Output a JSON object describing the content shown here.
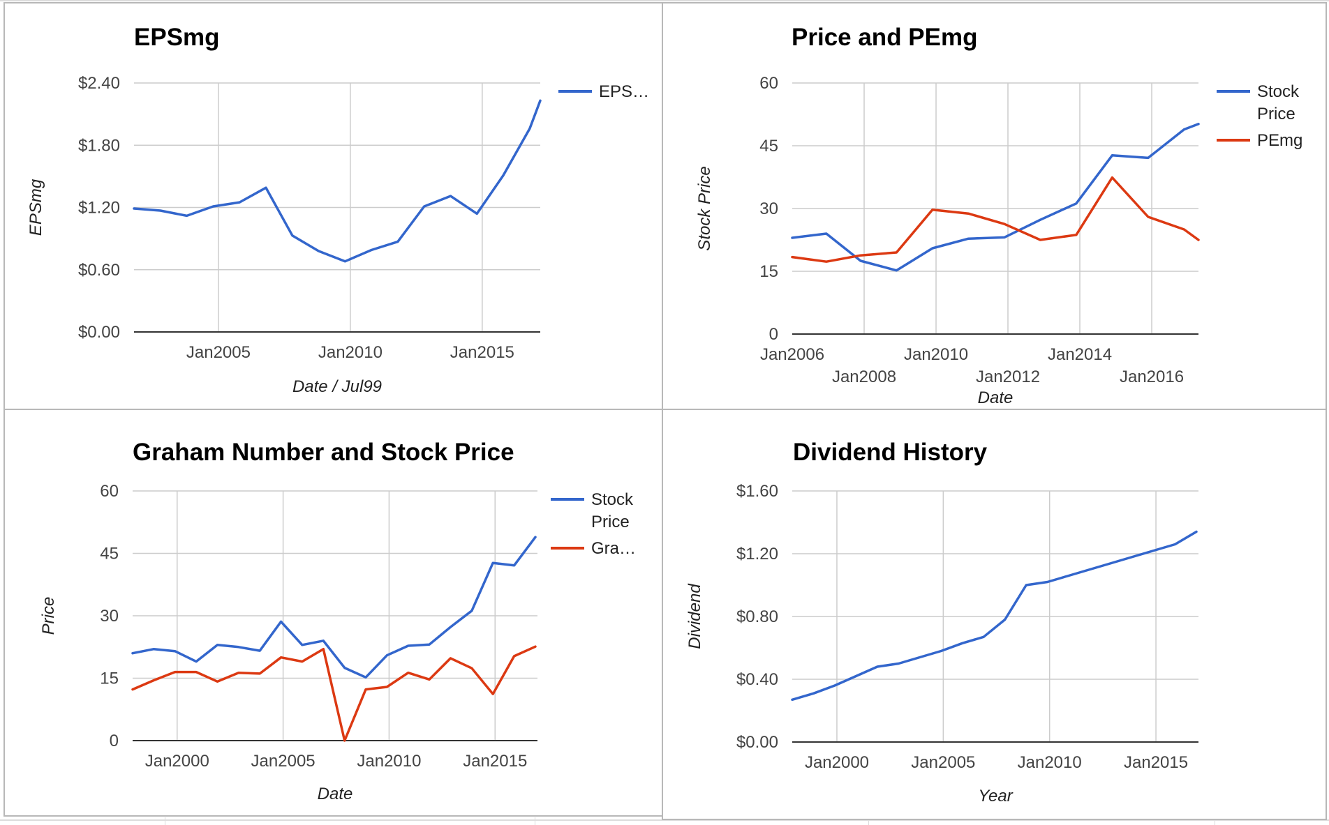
{
  "colors": {
    "blue": "#3366cc",
    "red": "#dc3912"
  },
  "chart_data": [
    {
      "type": "line",
      "title": "EPSmg",
      "xlabel": "Date / Jul99",
      "ylabel": "EPSmg",
      "xlim": [
        2001.8,
        2017.2
      ],
      "ylim": [
        0,
        2.4
      ],
      "yticks": [
        0,
        0.6,
        1.2,
        1.8,
        2.4
      ],
      "ytick_labels": [
        "$0.00",
        "$0.60",
        "$1.20",
        "$1.80",
        "$2.40"
      ],
      "xticks": [
        2005,
        2010,
        2015
      ],
      "xtick_labels": [
        "Jan2005",
        "Jan2010",
        "Jan2015"
      ],
      "legend_position": "right",
      "series": [
        {
          "name": "EPS…",
          "color": "#3366cc",
          "x": [
            2001.8,
            2002.8,
            2003.8,
            2004.8,
            2005.8,
            2006.8,
            2007.8,
            2008.8,
            2009.8,
            2010.8,
            2011.8,
            2012.8,
            2013.8,
            2014.8,
            2015.8,
            2016.8,
            2017.2
          ],
          "y": [
            1.19,
            1.17,
            1.12,
            1.21,
            1.25,
            1.39,
            0.93,
            0.78,
            0.68,
            0.79,
            0.87,
            1.21,
            1.31,
            1.14,
            1.51,
            1.96,
            2.23
          ]
        }
      ]
    },
    {
      "type": "line",
      "title": "Price and PEmg",
      "xlabel": "Date",
      "ylabel": "Stock Price",
      "xlim": [
        2006,
        2017.3
      ],
      "ylim": [
        0,
        60
      ],
      "yticks": [
        0,
        15,
        30,
        45,
        60
      ],
      "ytick_labels": [
        "0",
        "15",
        "30",
        "45",
        "60"
      ],
      "xticks": [
        2006,
        2008,
        2010,
        2012,
        2014,
        2016
      ],
      "xtick_labels": [
        "Jan2006",
        "Jan2008",
        "Jan2010",
        "Jan2012",
        "Jan2014",
        "Jan2016"
      ],
      "legend_position": "right",
      "series": [
        {
          "name": "Stock Price",
          "name_lines": [
            "Stock",
            "Price"
          ],
          "color": "#3366cc",
          "x": [
            2006,
            2006.95,
            2007.9,
            2008.9,
            2009.9,
            2010.9,
            2011.9,
            2012.9,
            2013.9,
            2014.9,
            2015.9,
            2016.9,
            2017.3
          ],
          "y": [
            23,
            24,
            17.5,
            15.2,
            20.5,
            22.8,
            23.1,
            27.3,
            31.2,
            42.7,
            42.1,
            48.9,
            50.2
          ]
        },
        {
          "name": "PEmg",
          "name_lines": [
            "PEmg"
          ],
          "color": "#dc3912",
          "x": [
            2006,
            2006.95,
            2007.9,
            2008.9,
            2009.9,
            2010.9,
            2011.9,
            2012.9,
            2013.9,
            2014.9,
            2015.9,
            2016.9,
            2017.3
          ],
          "y": [
            18.4,
            17.3,
            18.8,
            19.5,
            29.7,
            28.8,
            26.3,
            22.5,
            23.7,
            37.4,
            28.0,
            25.0,
            22.5
          ]
        }
      ]
    },
    {
      "type": "line",
      "title": "Graham Number and Stock Price",
      "xlabel": "Date",
      "ylabel": "Price",
      "xlim": [
        1997.9,
        2017
      ],
      "ylim": [
        0,
        60
      ],
      "yticks": [
        0,
        15,
        30,
        45,
        60
      ],
      "ytick_labels": [
        "0",
        "15",
        "30",
        "45",
        "60"
      ],
      "xticks": [
        2000,
        2005,
        2010,
        2015
      ],
      "xtick_labels": [
        "Jan2000",
        "Jan2005",
        "Jan2010",
        "Jan2015"
      ],
      "legend_position": "right",
      "series": [
        {
          "name": "Stock Price",
          "name_lines": [
            "Stock",
            "Price"
          ],
          "color": "#3366cc",
          "x": [
            1997.9,
            1998.9,
            1999.9,
            2000.9,
            2001.9,
            2002.9,
            2003.9,
            2004.9,
            2005.9,
            2006.9,
            2007.9,
            2008.9,
            2009.9,
            2010.9,
            2011.9,
            2012.9,
            2013.9,
            2014.9,
            2015.9,
            2016.9
          ],
          "y": [
            21,
            22,
            21.5,
            19,
            23,
            22.5,
            21.6,
            28.6,
            23,
            24,
            17.5,
            15.2,
            20.5,
            22.8,
            23.1,
            27.3,
            31.2,
            42.7,
            42.1,
            48.9
          ]
        },
        {
          "name": "Gra…",
          "name_lines": [
            "Gra…"
          ],
          "color": "#dc3912",
          "x": [
            1997.9,
            1998.9,
            1999.9,
            2000.9,
            2001.9,
            2002.9,
            2003.9,
            2004.9,
            2005.9,
            2006.9,
            2007.9,
            2008.9,
            2009.9,
            2010.9,
            2011.9,
            2012.9,
            2013.9,
            2014.9,
            2015.9,
            2016.9
          ],
          "y": [
            12.3,
            14.5,
            16.5,
            16.5,
            14.2,
            16.3,
            16.1,
            20,
            19,
            22,
            0,
            12.3,
            12.9,
            16.3,
            14.7,
            19.8,
            17.4,
            11.2,
            20.3,
            22.6
          ]
        }
      ]
    },
    {
      "type": "line",
      "title": "Dividend History",
      "xlabel": "Year",
      "ylabel": "Dividend",
      "xlim": [
        1997.9,
        2017
      ],
      "ylim": [
        0,
        1.6
      ],
      "yticks": [
        0,
        0.4,
        0.8,
        1.2,
        1.6
      ],
      "ytick_labels": [
        "$0.00",
        "$0.40",
        "$0.80",
        "$1.20",
        "$1.60"
      ],
      "xticks": [
        2000,
        2005,
        2010,
        2015
      ],
      "xtick_labels": [
        "Jan2000",
        "Jan2005",
        "Jan2010",
        "Jan2015"
      ],
      "legend_position": "none",
      "series": [
        {
          "name": "",
          "color": "#3366cc",
          "x": [
            1997.9,
            1998.9,
            1999.9,
            2000.9,
            2001.9,
            2002.9,
            2003.9,
            2004.9,
            2005.9,
            2006.9,
            2007.9,
            2008.9,
            2009.9,
            2010.9,
            2011.9,
            2012.9,
            2013.9,
            2014.9,
            2015.9,
            2016.9
          ],
          "y": [
            0.27,
            0.31,
            0.36,
            0.42,
            0.48,
            0.5,
            0.54,
            0.58,
            0.63,
            0.67,
            0.78,
            1.0,
            1.02,
            1.06,
            1.1,
            1.14,
            1.18,
            1.22,
            1.26,
            1.34
          ]
        }
      ]
    }
  ]
}
